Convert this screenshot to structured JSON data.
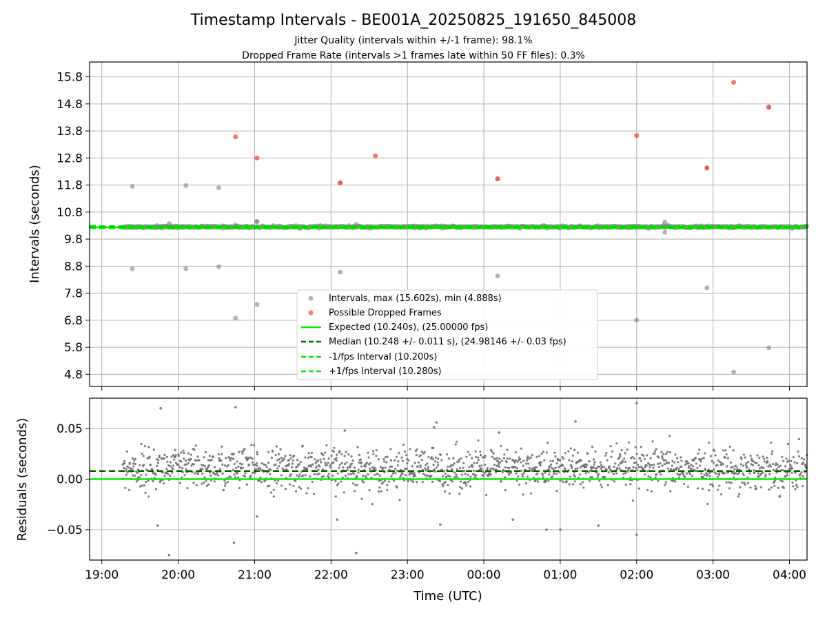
{
  "chart_data": [
    {
      "type": "scatter",
      "title": "Timestamp Intervals - BE001A_20250825_191650_845008",
      "subtitle_lines": [
        "Jitter Quality (intervals within +/-1 frame): 98.1%",
        "Dropped Frame Rate (intervals >1 frames late within 50 FF files): 0.3%"
      ],
      "xlabel": "",
      "ylabel": "Intervals (seconds)",
      "x_tick_labels": [
        "19:00",
        "20:00",
        "21:00",
        "22:00",
        "23:00",
        "00:00",
        "01:00",
        "02:00",
        "03:00",
        "04:00"
      ],
      "x_ticks_hours": [
        19,
        20,
        21,
        22,
        23,
        24,
        25,
        26,
        27,
        28
      ],
      "xlim_hours": [
        18.84,
        28.23
      ],
      "ylim": [
        4.35,
        16.35
      ],
      "y_ticks": [
        15.8,
        14.8,
        13.8,
        12.8,
        11.8,
        10.8,
        9.8,
        8.8,
        7.8,
        6.8,
        5.8,
        4.8
      ],
      "y_tick_labels": [
        "15.8",
        "14.8",
        "13.8",
        "12.8",
        "11.8",
        "10.8",
        "9.8",
        "8.8",
        "7.8",
        "6.8",
        "5.8",
        "4.8"
      ],
      "grid": true,
      "legend_placement": "lower-center",
      "legend": [
        "Intervals, max (15.602s), min (4.888s)",
        "Possible Dropped Frames",
        "Expected (10.240s), (25.00000 fps)",
        "Median (10.248 +/- 0.011 s), (24.98146 +/- 0.03 fps)",
        "-1/fps Interval (10.200s)",
        "+1/fps Interval (10.280s)"
      ],
      "series": [
        {
          "name": "Intervals, max (15.602s), min (4.888s)",
          "color": "#808080",
          "x_hours": [
            19.4,
            19.4,
            20.1,
            20.1,
            20.53,
            20.53,
            20.75,
            21.03,
            21.03,
            22.12,
            22.12,
            24.18,
            24.18,
            26.0,
            26.37,
            26.37,
            26.92,
            26.92,
            27.27,
            27.73,
            27.73,
            21.03,
            19.88,
            19.72,
            20.75,
            22.33,
            26.35
          ],
          "y": [
            11.75,
            8.7,
            11.78,
            8.7,
            11.7,
            8.78,
            6.88,
            7.38,
            10.45,
            8.58,
            11.88,
            8.44,
            12.03,
            6.8,
            10.43,
            10.05,
            12.43,
            8.0,
            4.88,
            14.68,
            5.78,
            10.45,
            10.37,
            10.3,
            10.32,
            10.34,
            10.3
          ]
        },
        {
          "name": "Possible Dropped Frames",
          "color": "#ff4040",
          "x_hours": [
            20.75,
            21.03,
            22.12,
            22.58,
            24.18,
            26.0,
            26.92,
            27.27,
            27.73
          ],
          "y": [
            13.58,
            12.8,
            11.88,
            12.88,
            12.03,
            13.63,
            12.43,
            15.6,
            14.68
          ]
        },
        {
          "name": "Expected (10.240s), (25.00000 fps)",
          "color": "#00ee00",
          "y_const": 10.24
        },
        {
          "name": "Median (10.248 +/- 0.011 s), (24.98146 +/- 0.03 fps)",
          "color": "#006400",
          "y_const": 10.248
        },
        {
          "name": "-1/fps Interval (10.200s)",
          "color": "#00ee00",
          "y_const": 10.2
        },
        {
          "name": "+1/fps Interval (10.280s)",
          "color": "#00ee00",
          "y_const": 10.28
        }
      ],
      "dense_band": {
        "x_start_hours": 19.27,
        "x_end_hours": 28.23,
        "y_center": 10.25,
        "y_spread": 0.05,
        "color": "#808080"
      }
    },
    {
      "type": "scatter",
      "title": "",
      "xlabel": "Time (UTC)",
      "ylabel": "Residuals (seconds)",
      "x_tick_labels": [
        "19:00",
        "20:00",
        "21:00",
        "22:00",
        "23:00",
        "00:00",
        "01:00",
        "02:00",
        "03:00",
        "04:00"
      ],
      "x_ticks_hours": [
        19,
        20,
        21,
        22,
        23,
        24,
        25,
        26,
        27,
        28
      ],
      "xlim_hours": [
        18.84,
        28.23
      ],
      "ylim": [
        -0.08,
        0.08
      ],
      "y_ticks": [
        0.05,
        0.0,
        -0.05
      ],
      "y_tick_labels": [
        "0.05",
        "0.00",
        "−0.05"
      ],
      "grid": true,
      "series": [
        {
          "name": "residuals",
          "color": "#6e6e6e",
          "x_hours": [
            19.77,
            20.75,
            19.73,
            20.73,
            21.03,
            22.33,
            19.88,
            22.18,
            23.35,
            23.38,
            25.2,
            26.0,
            25.0,
            25.5,
            24.2,
            24.38,
            24.82,
            26.0,
            23.43,
            22.08
          ],
          "y": [
            0.07,
            0.071,
            -0.046,
            -0.063,
            -0.037,
            -0.073,
            -0.075,
            0.048,
            0.051,
            0.056,
            0.057,
            0.075,
            -0.05,
            -0.046,
            0.046,
            -0.04,
            -0.05,
            -0.055,
            -0.045,
            -0.04
          ]
        },
        {
          "name": "Expected",
          "color": "#00ee00",
          "y_const": 0.0
        },
        {
          "name": "Median",
          "color": "#006400",
          "y_const": 0.008
        }
      ],
      "dense_band": {
        "x_start_hours": 19.27,
        "x_end_hours": 28.23,
        "y_center": 0.01,
        "y_spread": 0.016,
        "color": "#6e6e6e"
      }
    }
  ]
}
